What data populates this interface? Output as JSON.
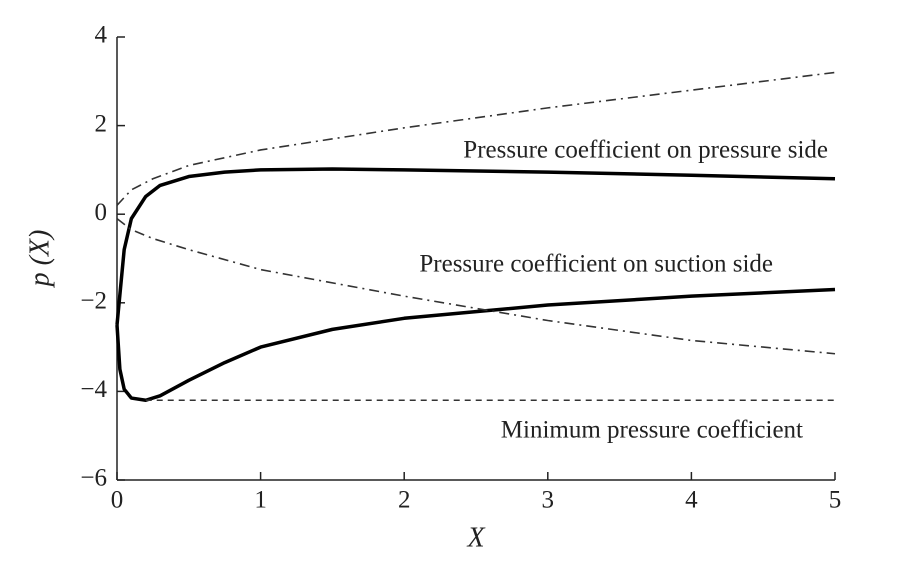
{
  "chart_data": {
    "type": "line",
    "xlabel": "X",
    "ylabel": "p (X)",
    "xlim": [
      0,
      5
    ],
    "ylim": [
      -6,
      4
    ],
    "xticks": [
      0,
      1,
      2,
      3,
      4,
      5
    ],
    "yticks": [
      {
        "value": -6,
        "label": "−6"
      },
      {
        "value": -4,
        "label": "−4"
      },
      {
        "value": -2,
        "label": "−2"
      },
      0,
      2,
      4
    ],
    "grid": false,
    "series": [
      {
        "color": "#000000",
        "dash": "solid",
        "x": [
          0,
          0.05,
          0.1,
          0.2,
          0.3,
          0.5,
          0.75,
          1,
          1.5,
          2,
          3,
          4,
          5
        ],
        "values": [
          -2.5,
          -0.8,
          -0.1,
          0.4,
          0.65,
          0.85,
          0.95,
          1.0,
          1.02,
          1.0,
          0.95,
          0.88,
          0.8
        ]
      },
      {
        "color": "#000000",
        "dash": "solid",
        "x": [
          0,
          0.02,
          0.05,
          0.1,
          0.2,
          0.3,
          0.5,
          0.75,
          1,
          1.5,
          2,
          2.5,
          3,
          4,
          5
        ],
        "values": [
          -2.5,
          -3.5,
          -3.95,
          -4.15,
          -4.2,
          -4.1,
          -3.75,
          -3.35,
          -3.0,
          -2.6,
          -2.35,
          -2.2,
          -2.05,
          -1.85,
          -1.7
        ]
      },
      {
        "color": "#333333",
        "dash": "dashdot",
        "x": [
          0,
          0.1,
          0.25,
          0.5,
          1,
          2,
          3,
          4,
          5
        ],
        "values": [
          0.2,
          0.55,
          0.8,
          1.1,
          1.45,
          1.95,
          2.4,
          2.8,
          3.2
        ]
      },
      {
        "color": "#333333",
        "dash": "dashdot",
        "x": [
          0,
          0.1,
          0.25,
          0.5,
          1,
          2,
          3,
          4,
          5
        ],
        "values": [
          -0.1,
          -0.35,
          -0.55,
          -0.8,
          -1.25,
          -1.85,
          -2.4,
          -2.85,
          -3.15
        ]
      },
      {
        "color": "#333333",
        "dash": "dashed",
        "x": [
          0.2,
          5
        ],
        "values": [
          -4.2,
          -4.2
        ]
      }
    ],
    "annotations": [
      "Pressure coefficient on pressure side",
      "Pressure coefficient on suction side",
      "Minimum pressure coefficient"
    ]
  }
}
